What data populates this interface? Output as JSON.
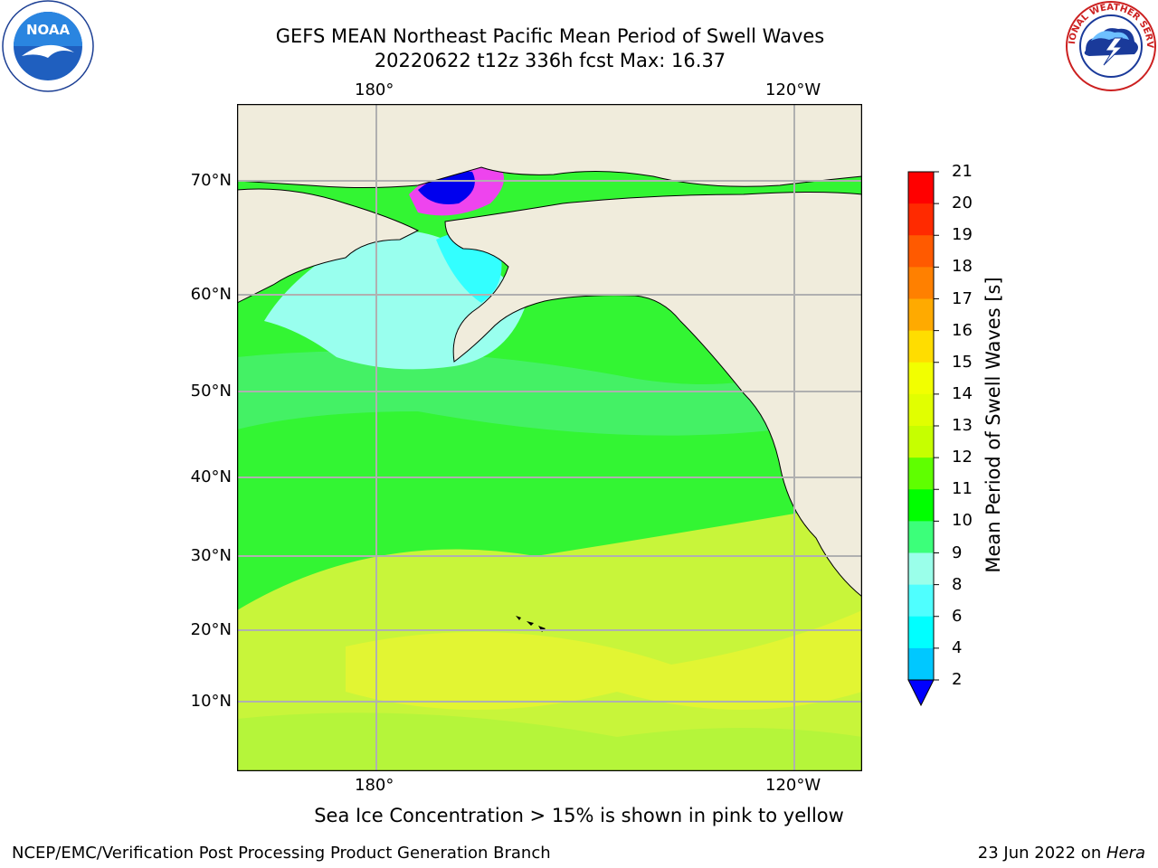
{
  "title_line1": "GEFS MEAN Northeast Pacific Mean Period of Swell Waves",
  "title_line2": "20220622 t12z 336h fcst   Max: 16.37",
  "logos": {
    "left": "noaa-logo",
    "right": "nws-logo",
    "left_text": "NOAA",
    "right_text": "NATIONAL WEATHER SERVICE"
  },
  "map": {
    "lon_labels": [
      "180°",
      "120°W"
    ],
    "lat_labels": [
      "70°N",
      "60°N",
      "50°N",
      "40°N",
      "30°N",
      "20°N",
      "10°N"
    ],
    "ocean_color": "#33ff33",
    "land_color": "#f0ecdc"
  },
  "colorbar": {
    "label": "Mean Period of Swell Waves [s]",
    "ticks": [
      "21",
      "20",
      "19",
      "18",
      "17",
      "16",
      "15",
      "14",
      "13",
      "12",
      "11",
      "10",
      "9",
      "8",
      "6",
      "4",
      "2"
    ],
    "colors": [
      "#ff0000",
      "#ff3300",
      "#ff5500",
      "#ff7700",
      "#ff9900",
      "#ffbb00",
      "#ffe600",
      "#f5ff00",
      "#e5ff00",
      "#cbff00",
      "#66ff00",
      "#00ff00",
      "#44ff7f",
      "#99ffee",
      "#55ffff",
      "#00ffff",
      "#00ddff",
      "#0088ff",
      "#0000ff"
    ]
  },
  "note": "Sea Ice Concentration > 15% is shown in pink to yellow",
  "credit": "NCEP/EMC/Verification Post Processing Product Generation Branch",
  "date": "23 Jun 2022 on ",
  "host": "Hera"
}
